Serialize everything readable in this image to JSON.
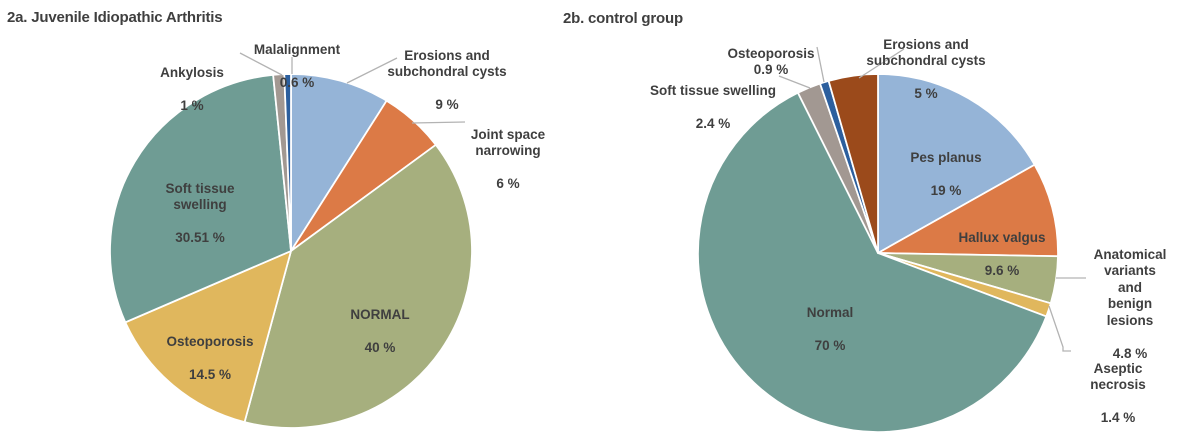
{
  "figure": {
    "panel_titles": [
      "2a. Juvenile Idiopathic Arthritis",
      "2b. control group"
    ]
  },
  "colors": {
    "text": "#3f3f3f",
    "leader_line": "#b3b3b3",
    "background": "#ffffff",
    "slice_gap_stroke": "#ffffff"
  },
  "chart_data": [
    {
      "type": "pie",
      "title": "2a. Juvenile Idiopathic Arthritis",
      "start_angle": "12-oclock",
      "direction": "clockwise",
      "unit": "%",
      "slices": [
        {
          "label": "Erosions and\nsubchondral cysts",
          "value": 9,
          "pct_label": "9 %",
          "color": "#95b4d7",
          "label_placement": "outside"
        },
        {
          "label": "Joint space\nnarrowing",
          "value": 6,
          "pct_label": "6 %",
          "color": "#dc7a46",
          "label_placement": "outside"
        },
        {
          "label": "NORMAL",
          "value": 40,
          "pct_label": "40 %",
          "color": "#a6af7e",
          "label_placement": "inside"
        },
        {
          "label": "Osteoporosis",
          "value": 14.5,
          "pct_label": "14.5 %",
          "color": "#e0b75d",
          "label_placement": "inside"
        },
        {
          "label": "Soft tissue\nswelling",
          "value": 30.51,
          "pct_label": "30.51 %",
          "color": "#6f9c94",
          "label_placement": "inside"
        },
        {
          "label": "Ankylosis",
          "value": 1,
          "pct_label": "1 %",
          "color": "#a29892",
          "label_placement": "outside"
        },
        {
          "label": "Malalignment",
          "value": 0.6,
          "pct_label": "0.6 %",
          "color": "#2c5f9e",
          "label_placement": "outside"
        }
      ]
    },
    {
      "type": "pie",
      "title": "2b. control group",
      "start_angle": "12-oclock",
      "direction": "clockwise",
      "unit": "%",
      "slices": [
        {
          "label": "Pes planus",
          "value": 19,
          "pct_label": "19 %",
          "color": "#95b4d7",
          "label_placement": "inside"
        },
        {
          "label": "Hallux valgus",
          "value": 9.6,
          "pct_label": "9.6 %",
          "color": "#dc7a46",
          "label_placement": "inside"
        },
        {
          "label": "Anatomical variants\nand\nbenign lesions",
          "value": 4.8,
          "pct_label": "4.8 %",
          "color": "#a6af7e",
          "label_placement": "outside"
        },
        {
          "label": "Aseptic necrosis",
          "value": 1.4,
          "pct_label": "1.4 %",
          "color": "#e0b75d",
          "label_placement": "outside"
        },
        {
          "label": "Normal",
          "value": 70,
          "pct_label": "70 %",
          "color": "#6f9c94",
          "label_placement": "inside"
        },
        {
          "label": "Soft tissue swelling",
          "value": 2.4,
          "pct_label": "2.4 %",
          "color": "#a29892",
          "label_placement": "outside"
        },
        {
          "label": "Osteoporosis",
          "value": 0.9,
          "pct_label": "0.9 %",
          "color": "#2c5f9e",
          "label_placement": "outside"
        },
        {
          "label": "Erosions and\nsubchondral cysts",
          "value": 5,
          "pct_label": "5 %",
          "color": "#9b4a1b",
          "label_placement": "outside"
        }
      ]
    }
  ]
}
